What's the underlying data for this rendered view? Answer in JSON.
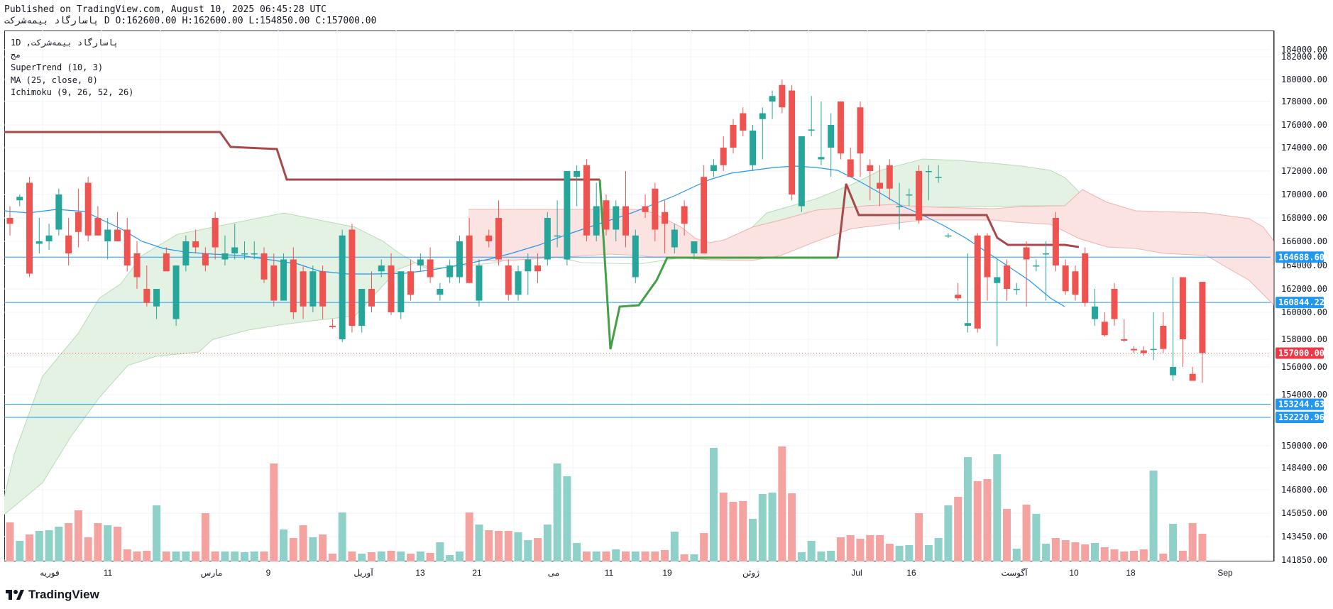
{
  "header": {
    "published_line": "Published on TradingView.com, August 10, 2025 06:45:28 UTC",
    "symbol": "پاسارگاد بیمه‌شرکت",
    "ohlc_line": "D O:162600.00 H:162600.00 L:154850.00 C:157000.00"
  },
  "legend": {
    "line1": "1D ,پاسارگاد بیمه‌شرکت",
    "line2": "مج",
    "line3": "SuperTrend (10, 3)",
    "line4": "MA (25, close, 0)",
    "line5": "Ichimoku (9, 26, 52, 26)"
  },
  "footer": {
    "brand": "TradingView"
  },
  "colors": {
    "up": "#26a69a",
    "down": "#ef5350",
    "vol_up": "#8fd0c9",
    "vol_down": "#f5a3a1",
    "ma": "#2196f3",
    "supertrend_up": "#43a047",
    "supertrend_down": "#a64949",
    "cloud_bull": "#e3f2e3",
    "cloud_bear": "#fbe3e2",
    "hline": "#2196f3",
    "price_tag": "#f23645"
  },
  "chart_data": {
    "type": "candlestick",
    "timeframe": "1D",
    "ylim": [
      141850,
      184000
    ],
    "y_ticks": [
      184000,
      182000,
      180000,
      178000,
      176000,
      174000,
      172000,
      170000,
      168000,
      166000,
      164000,
      162000,
      160000,
      158000,
      156000,
      154000,
      150000,
      148400,
      146800,
      145050,
      143450,
      141850
    ],
    "y_tick_labels": [
      "184000.00",
      "182000.00",
      "180000.00",
      "178000.00",
      "176000.00",
      "174000.00",
      "172000.00",
      "170000.00",
      "168000.00",
      "166000.00",
      "164000.00",
      "162000.00",
      "160000.00",
      "158000.00",
      "156000.00",
      "154000.00",
      "150000.00",
      "148400.00",
      "146800.00",
      "145050.00",
      "143450.00",
      "141850.00"
    ],
    "x_tick_labels": [
      "فوریه",
      "11",
      "مارس",
      "9",
      "آوریل",
      "13",
      "21",
      "می",
      "11",
      "19",
      "ژوئن",
      "Jul",
      "16",
      "آگوست",
      "10",
      "18",
      "Sep"
    ],
    "horizontal_levels": [
      {
        "value": 164688.6,
        "label": "164688.60"
      },
      {
        "value": 160844.22,
        "label": "160844.22"
      },
      {
        "value": 153244.63,
        "label": "153244.63"
      },
      {
        "value": 152220.96,
        "label": "152220.96"
      }
    ],
    "last_price": {
      "value": 157000.0,
      "label": "157000.00"
    },
    "candles": [
      {
        "o": 168000,
        "h": 169000,
        "l": 166500,
        "c": 167500
      },
      {
        "o": 169500,
        "h": 170000,
        "l": 169000,
        "c": 169800
      },
      {
        "o": 171000,
        "h": 171500,
        "l": 163000,
        "c": 163300
      },
      {
        "o": 165800,
        "h": 168000,
        "l": 165000,
        "c": 166000
      },
      {
        "o": 166000,
        "h": 167500,
        "l": 165300,
        "c": 166500
      },
      {
        "o": 167000,
        "h": 170500,
        "l": 166500,
        "c": 170000
      },
      {
        "o": 166500,
        "h": 168000,
        "l": 164000,
        "c": 165000
      },
      {
        "o": 168500,
        "h": 170500,
        "l": 165500,
        "c": 166800
      },
      {
        "o": 171000,
        "h": 171500,
        "l": 166000,
        "c": 166500
      },
      {
        "o": 168000,
        "h": 169000,
        "l": 166500,
        "c": 166500
      },
      {
        "o": 166000,
        "h": 168000,
        "l": 164500,
        "c": 167000
      },
      {
        "o": 167000,
        "h": 168500,
        "l": 166000,
        "c": 166000
      },
      {
        "o": 167000,
        "h": 168000,
        "l": 163500,
        "c": 164000
      },
      {
        "o": 165000,
        "h": 166000,
        "l": 162000,
        "c": 163000
      },
      {
        "o": 162000,
        "h": 164000,
        "l": 160500,
        "c": 160800
      },
      {
        "o": 160500,
        "h": 162000,
        "l": 159500,
        "c": 162000
      },
      {
        "o": 165000,
        "h": 165500,
        "l": 163500,
        "c": 163500
      },
      {
        "o": 159500,
        "h": 164000,
        "l": 159000,
        "c": 164000
      },
      {
        "o": 164000,
        "h": 166500,
        "l": 163500,
        "c": 166000
      },
      {
        "o": 166000,
        "h": 167000,
        "l": 165000,
        "c": 165500
      },
      {
        "o": 165000,
        "h": 165500,
        "l": 163500,
        "c": 164000
      },
      {
        "o": 168000,
        "h": 168500,
        "l": 164500,
        "c": 165500
      },
      {
        "o": 164500,
        "h": 166500,
        "l": 164000,
        "c": 165000
      },
      {
        "o": 165000,
        "h": 167500,
        "l": 164500,
        "c": 165500
      },
      {
        "o": 165000,
        "h": 166000,
        "l": 164500,
        "c": 165000
      },
      {
        "o": 165000,
        "h": 166000,
        "l": 164500,
        "c": 165000
      },
      {
        "o": 165000,
        "h": 165500,
        "l": 162500,
        "c": 162800
      },
      {
        "o": 164000,
        "h": 165000,
        "l": 160500,
        "c": 161000
      },
      {
        "o": 161000,
        "h": 165000,
        "l": 161000,
        "c": 164500
      },
      {
        "o": 164500,
        "h": 165500,
        "l": 159500,
        "c": 160000
      },
      {
        "o": 163500,
        "h": 164000,
        "l": 159500,
        "c": 160500
      },
      {
        "o": 160500,
        "h": 164000,
        "l": 160000,
        "c": 163500
      },
      {
        "o": 163500,
        "h": 164000,
        "l": 159500,
        "c": 160500
      },
      {
        "o": 159000,
        "h": 159500,
        "l": 158800,
        "c": 158900
      },
      {
        "o": 158000,
        "h": 167000,
        "l": 157800,
        "c": 166500
      },
      {
        "o": 167000,
        "h": 167500,
        "l": 158500,
        "c": 159000
      },
      {
        "o": 159000,
        "h": 162000,
        "l": 158500,
        "c": 162000
      },
      {
        "o": 162000,
        "h": 163500,
        "l": 160000,
        "c": 160500
      },
      {
        "o": 163500,
        "h": 164500,
        "l": 163000,
        "c": 164000
      },
      {
        "o": 164000,
        "h": 165000,
        "l": 159800,
        "c": 160000
      },
      {
        "o": 160000,
        "h": 163500,
        "l": 159500,
        "c": 163500
      },
      {
        "o": 163500,
        "h": 164500,
        "l": 161000,
        "c": 161500
      },
      {
        "o": 164000,
        "h": 165000,
        "l": 163500,
        "c": 164500
      },
      {
        "o": 164500,
        "h": 165500,
        "l": 162500,
        "c": 163000
      },
      {
        "o": 161500,
        "h": 162500,
        "l": 161000,
        "c": 162000
      },
      {
        "o": 163000,
        "h": 164500,
        "l": 162500,
        "c": 164000
      },
      {
        "o": 163000,
        "h": 166500,
        "l": 162500,
        "c": 166000
      },
      {
        "o": 166500,
        "h": 168000,
        "l": 162500,
        "c": 162500
      },
      {
        "o": 161000,
        "h": 164500,
        "l": 160500,
        "c": 164000
      },
      {
        "o": 166500,
        "h": 167000,
        "l": 165500,
        "c": 166000
      },
      {
        "o": 168000,
        "h": 169500,
        "l": 164000,
        "c": 164500
      },
      {
        "o": 164000,
        "h": 164500,
        "l": 161000,
        "c": 161500
      },
      {
        "o": 161500,
        "h": 164000,
        "l": 161000,
        "c": 163500
      },
      {
        "o": 163500,
        "h": 165000,
        "l": 161500,
        "c": 164500
      },
      {
        "o": 164000,
        "h": 165000,
        "l": 162500,
        "c": 163500
      },
      {
        "o": 164500,
        "h": 168500,
        "l": 164000,
        "c": 168000
      },
      {
        "o": 166500,
        "h": 169500,
        "l": 165500,
        "c": 166500
      },
      {
        "o": 164500,
        "h": 172000,
        "l": 164000,
        "c": 172000
      },
      {
        "o": 171500,
        "h": 172500,
        "l": 169000,
        "c": 172000
      },
      {
        "o": 172500,
        "h": 173000,
        "l": 166000,
        "c": 166500
      },
      {
        "o": 166500,
        "h": 171000,
        "l": 166000,
        "c": 169000
      },
      {
        "o": 169500,
        "h": 170000,
        "l": 166500,
        "c": 167000
      },
      {
        "o": 167000,
        "h": 169500,
        "l": 166000,
        "c": 169000
      },
      {
        "o": 169000,
        "h": 172000,
        "l": 165500,
        "c": 166500
      },
      {
        "o": 163000,
        "h": 167000,
        "l": 162500,
        "c": 166500
      },
      {
        "o": 169000,
        "h": 170000,
        "l": 168000,
        "c": 168500
      },
      {
        "o": 170500,
        "h": 171000,
        "l": 166000,
        "c": 167000
      },
      {
        "o": 168500,
        "h": 169500,
        "l": 165000,
        "c": 167500
      },
      {
        "o": 165500,
        "h": 167500,
        "l": 165000,
        "c": 167000
      },
      {
        "o": 169000,
        "h": 169500,
        "l": 166500,
        "c": 167500
      },
      {
        "o": 165000,
        "h": 166000,
        "l": 164500,
        "c": 166000
      },
      {
        "o": 171500,
        "h": 172500,
        "l": 165000,
        "c": 165000
      },
      {
        "o": 172000,
        "h": 173000,
        "l": 171500,
        "c": 172500
      },
      {
        "o": 174000,
        "h": 175000,
        "l": 172000,
        "c": 172500
      },
      {
        "o": 176000,
        "h": 176500,
        "l": 173500,
        "c": 174000
      },
      {
        "o": 177000,
        "h": 177500,
        "l": 175000,
        "c": 175500
      },
      {
        "o": 172500,
        "h": 176000,
        "l": 172000,
        "c": 175500
      },
      {
        "o": 176500,
        "h": 177500,
        "l": 173000,
        "c": 177000
      },
      {
        "o": 178000,
        "h": 179000,
        "l": 176500,
        "c": 178500
      },
      {
        "o": 179500,
        "h": 180000,
        "l": 177000,
        "c": 177500
      },
      {
        "o": 179000,
        "h": 179500,
        "l": 169500,
        "c": 170000
      },
      {
        "o": 169000,
        "h": 175000,
        "l": 168500,
        "c": 175000
      },
      {
        "o": 175500,
        "h": 178500,
        "l": 175000,
        "c": 175600
      },
      {
        "o": 173000,
        "h": 178000,
        "l": 172500,
        "c": 173200
      },
      {
        "o": 174000,
        "h": 177000,
        "l": 171500,
        "c": 176000
      },
      {
        "o": 178000,
        "h": 178000,
        "l": 173000,
        "c": 173500
      },
      {
        "o": 173000,
        "h": 174000,
        "l": 171500,
        "c": 171500
      },
      {
        "o": 177500,
        "h": 178000,
        "l": 171500,
        "c": 173500
      },
      {
        "o": 172500,
        "h": 173000,
        "l": 169500,
        "c": 172000
      },
      {
        "o": 171000,
        "h": 172500,
        "l": 169000,
        "c": 170500
      },
      {
        "o": 172500,
        "h": 173000,
        "l": 169500,
        "c": 170500
      },
      {
        "o": 169000,
        "h": 171000,
        "l": 167000,
        "c": 169000
      },
      {
        "o": 170000,
        "h": 170500,
        "l": 169000,
        "c": 170000
      },
      {
        "o": 172000,
        "h": 172500,
        "l": 167500,
        "c": 167800
      },
      {
        "o": 172000,
        "h": 172500,
        "l": 169500,
        "c": 172000
      },
      {
        "o": 171500,
        "h": 172500,
        "l": 171000,
        "c": 171500
      },
      {
        "o": 166500,
        "h": 166700,
        "l": 166300,
        "c": 166500
      },
      {
        "o": 161500,
        "h": 162500,
        "l": 161000,
        "c": 161200
      },
      {
        "o": 159000,
        "h": 165000,
        "l": 158500,
        "c": 159200
      },
      {
        "o": 166500,
        "h": 166700,
        "l": 158500,
        "c": 158800
      },
      {
        "o": 166500,
        "h": 166700,
        "l": 161000,
        "c": 163000
      },
      {
        "o": 162500,
        "h": 164500,
        "l": 157500,
        "c": 163000
      },
      {
        "o": 164000,
        "h": 164500,
        "l": 161000,
        "c": 162000
      },
      {
        "o": 162000,
        "h": 162500,
        "l": 161500,
        "c": 162000
      },
      {
        "o": 165500,
        "h": 166000,
        "l": 160500,
        "c": 164500
      },
      {
        "o": 164000,
        "h": 164500,
        "l": 163500,
        "c": 164000
      },
      {
        "o": 165000,
        "h": 166000,
        "l": 161000,
        "c": 165000
      },
      {
        "o": 168000,
        "h": 168500,
        "l": 163500,
        "c": 164000
      },
      {
        "o": 164000,
        "h": 164500,
        "l": 161500,
        "c": 161800
      },
      {
        "o": 163500,
        "h": 164000,
        "l": 161000,
        "c": 161500
      },
      {
        "o": 165000,
        "h": 165500,
        "l": 160500,
        "c": 160800
      },
      {
        "o": 159500,
        "h": 162000,
        "l": 159000,
        "c": 160500
      },
      {
        "o": 159300,
        "h": 160000,
        "l": 158200,
        "c": 158300
      },
      {
        "o": 162000,
        "h": 162500,
        "l": 159000,
        "c": 159500
      },
      {
        "o": 158000,
        "h": 159500,
        "l": 157800,
        "c": 157900
      },
      {
        "o": 157300,
        "h": 157500,
        "l": 157000,
        "c": 157200
      },
      {
        "o": 157200,
        "h": 157500,
        "l": 156800,
        "c": 157000
      },
      {
        "o": 157300,
        "h": 160000,
        "l": 156500,
        "c": 157300
      },
      {
        "o": 159000,
        "h": 160000,
        "l": 157000,
        "c": 157300
      },
      {
        "o": 155400,
        "h": 163000,
        "l": 155000,
        "c": 156000
      },
      {
        "o": 163000,
        "h": 163000,
        "l": 156000,
        "c": 158000
      },
      {
        "o": 155500,
        "h": 156000,
        "l": 155000,
        "c": 155000
      },
      {
        "o": 162600,
        "h": 162600,
        "l": 154850,
        "c": 157000
      }
    ]
  }
}
